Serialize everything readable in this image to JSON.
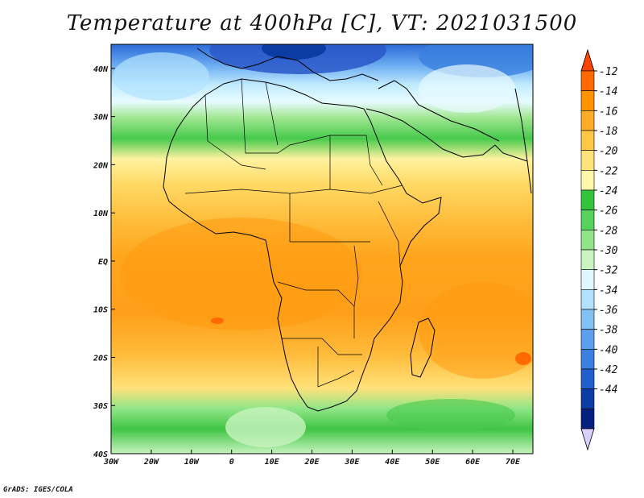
{
  "title": "Temperature at 400hPa [C], VT: 2021031500",
  "credit": "GrADS: IGES/COLA",
  "map": {
    "lon_range": [
      -30,
      75
    ],
    "lat_range": [
      -40,
      45
    ],
    "x_ticks": [
      {
        "lon": -30,
        "label": "30W"
      },
      {
        "lon": -20,
        "label": "20W"
      },
      {
        "lon": -10,
        "label": "10W"
      },
      {
        "lon": 0,
        "label": "0"
      },
      {
        "lon": 10,
        "label": "10E"
      },
      {
        "lon": 20,
        "label": "20E"
      },
      {
        "lon": 30,
        "label": "30E"
      },
      {
        "lon": 40,
        "label": "40E"
      },
      {
        "lon": 50,
        "label": "50E"
      },
      {
        "lon": 60,
        "label": "60E"
      },
      {
        "lon": 70,
        "label": "70E"
      }
    ],
    "y_ticks": [
      {
        "lat": 40,
        "label": "40N"
      },
      {
        "lat": 30,
        "label": "30N"
      },
      {
        "lat": 20,
        "label": "20N"
      },
      {
        "lat": 10,
        "label": "10N"
      },
      {
        "lat": 0,
        "label": "EQ"
      },
      {
        "lat": -10,
        "label": "10S"
      },
      {
        "lat": -20,
        "label": "20S"
      },
      {
        "lat": -30,
        "label": "30S"
      },
      {
        "lat": -40,
        "label": "40S"
      }
    ]
  },
  "colorbar": {
    "levels": [
      "-12",
      "-14",
      "-16",
      "-18",
      "-20",
      "-22",
      "-24",
      "-26",
      "-28",
      "-30",
      "-32",
      "-34",
      "-36",
      "-38",
      "-40",
      "-42",
      "-44"
    ],
    "colors": [
      "#ff6a00",
      "#ff9300",
      "#ffac28",
      "#ffc648",
      "#ffe27a",
      "#fff7a8",
      "#34c43c",
      "#56d35a",
      "#8fe587",
      "#c8f4bf",
      "#dff8ff",
      "#b2e2fd",
      "#80c2f6",
      "#5aa0ec",
      "#3a80de",
      "#2060cc",
      "#0a3ca4",
      "#062080"
    ],
    "top_color": "#ff4400",
    "bottom_color": "#d8d0ff"
  }
}
